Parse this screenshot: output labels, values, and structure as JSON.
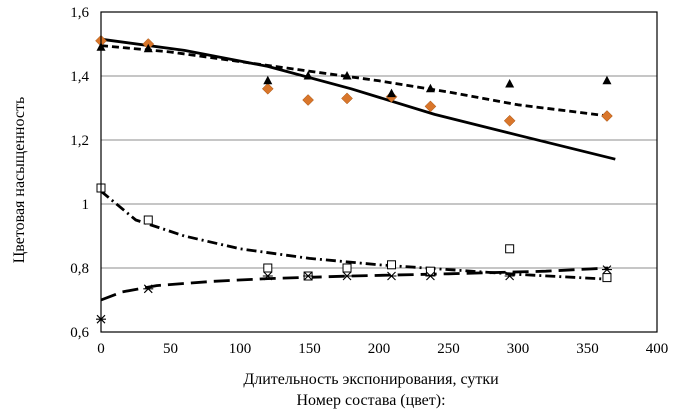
{
  "chart_data": {
    "type": "scatter",
    "title": "",
    "xlabel": "Длительность экспонирования, сутки",
    "ylabel": "Цветовая насыщенность",
    "legend_title": "Номер состава (цвет):",
    "xlim": [
      0,
      400
    ],
    "ylim": [
      0.6,
      1.6
    ],
    "x_ticks": [
      0,
      50,
      100,
      150,
      200,
      250,
      300,
      350,
      400
    ],
    "x_tick_labels": [
      "0",
      "50",
      "100",
      "150",
      "200",
      "250",
      "300",
      "350",
      "400"
    ],
    "y_ticks": [
      0.6,
      0.8,
      1.0,
      1.2,
      1.4,
      1.6
    ],
    "y_tick_labels": [
      "0,6",
      "0,8",
      "1",
      "1,2",
      "1,4",
      "1,6"
    ],
    "grid": "horizontal",
    "series": [
      {
        "marker": "diamond",
        "color": "#d9762b",
        "points": [
          [
            0,
            1.51
          ],
          [
            34,
            1.5
          ],
          [
            120,
            1.36
          ],
          [
            149,
            1.325
          ],
          [
            177,
            1.33
          ],
          [
            209,
            1.335
          ],
          [
            237,
            1.305
          ],
          [
            294,
            1.26
          ],
          [
            364,
            1.275
          ]
        ],
        "trend": {
          "style": "solid",
          "points": [
            [
              0,
              1.515
            ],
            [
              60,
              1.48
            ],
            [
              120,
              1.43
            ],
            [
              180,
              1.36
            ],
            [
              240,
              1.28
            ],
            [
              300,
              1.215
            ],
            [
              370,
              1.14
            ]
          ]
        }
      },
      {
        "marker": "triangle",
        "color": "#000000",
        "points": [
          [
            0,
            1.49
          ],
          [
            34,
            1.485
          ],
          [
            120,
            1.385
          ],
          [
            149,
            1.4
          ],
          [
            177,
            1.4
          ],
          [
            209,
            1.345
          ],
          [
            237,
            1.36
          ],
          [
            294,
            1.375
          ],
          [
            364,
            1.385
          ]
        ],
        "trend": {
          "style": "dash",
          "points": [
            [
              0,
              1.495
            ],
            [
              50,
              1.475
            ],
            [
              100,
              1.445
            ],
            [
              150,
              1.415
            ],
            [
              200,
              1.385
            ],
            [
              250,
              1.35
            ],
            [
              300,
              1.31
            ],
            [
              365,
              1.275
            ]
          ]
        }
      },
      {
        "marker": "square-open",
        "color": "#000000",
        "points": [
          [
            0,
            1.05
          ],
          [
            34,
            0.95
          ],
          [
            120,
            0.8
          ],
          [
            149,
            0.775
          ],
          [
            177,
            0.8
          ],
          [
            209,
            0.81
          ],
          [
            237,
            0.79
          ],
          [
            294,
            0.86
          ],
          [
            364,
            0.77
          ]
        ],
        "trend": {
          "style": "dashdot",
          "points": [
            [
              0,
              1.04
            ],
            [
              25,
              0.95
            ],
            [
              60,
              0.9
            ],
            [
              100,
              0.86
            ],
            [
              150,
              0.83
            ],
            [
              200,
              0.81
            ],
            [
              250,
              0.795
            ],
            [
              300,
              0.78
            ],
            [
              365,
              0.765
            ]
          ]
        }
      },
      {
        "marker": "star",
        "color": "#000000",
        "points": [
          [
            0,
            0.64
          ],
          [
            34,
            0.735
          ],
          [
            120,
            0.775
          ],
          [
            149,
            0.775
          ],
          [
            177,
            0.775
          ],
          [
            209,
            0.775
          ],
          [
            237,
            0.775
          ],
          [
            294,
            0.775
          ],
          [
            364,
            0.795
          ]
        ],
        "trend": {
          "style": "longdash",
          "points": [
            [
              0,
              0.7
            ],
            [
              15,
              0.725
            ],
            [
              40,
              0.745
            ],
            [
              80,
              0.758
            ],
            [
              120,
              0.767
            ],
            [
              180,
              0.775
            ],
            [
              250,
              0.782
            ],
            [
              320,
              0.79
            ],
            [
              365,
              0.8
            ]
          ]
        }
      }
    ]
  }
}
